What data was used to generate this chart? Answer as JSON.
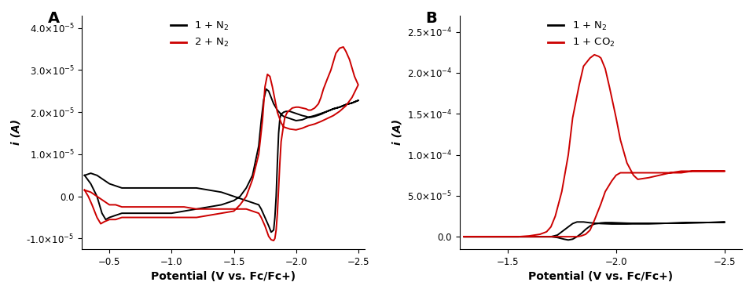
{
  "panel_A": {
    "label": "A",
    "xlabel": "Potential (V vs. Fc/Fc+)",
    "ylabel": "i (A)",
    "xlim": [
      -0.28,
      -2.55
    ],
    "ylim": [
      -1.25e-05,
      4.3e-05
    ],
    "yticks": [
      -1e-05,
      0.0,
      1e-05,
      2e-05,
      3e-05,
      4e-05
    ],
    "xticks": [
      -0.5,
      -1.0,
      -1.5,
      -2.0,
      -2.5
    ],
    "legend": [
      "1 + N$_2$",
      "2 + N$_2$"
    ],
    "line_colors": [
      "#000000",
      "#cc0000"
    ]
  },
  "panel_B": {
    "label": "B",
    "xlabel": "Potential (V vs. Fc/Fc+)",
    "ylabel": "i (A)",
    "xlim": [
      -1.28,
      -2.58
    ],
    "ylim": [
      -1.5e-05,
      0.00027
    ],
    "yticks": [
      0.0,
      5e-05,
      0.0001,
      0.00015,
      0.0002,
      0.00025
    ],
    "xticks": [
      -1.5,
      -2.0,
      -2.5
    ],
    "legend": [
      "1 + N$_2$",
      "1 + CO$_2$"
    ],
    "line_colors": [
      "#000000",
      "#cc0000"
    ]
  }
}
